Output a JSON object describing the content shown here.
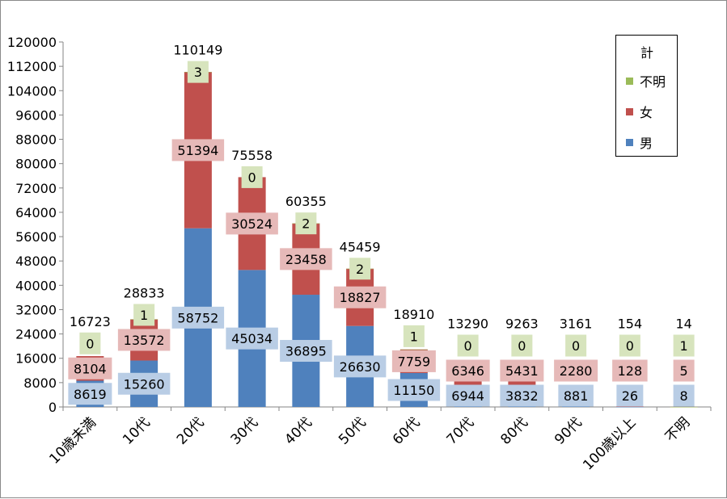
{
  "chart_data": {
    "type": "bar",
    "stacked": true,
    "categories": [
      "10歳未満",
      "10代",
      "20代",
      "30代",
      "40代",
      "50代",
      "60代",
      "70代",
      "80代",
      "90代",
      "100歳以上",
      "不明"
    ],
    "series": [
      {
        "name": "男",
        "color": "#4f81bd",
        "label_bg": "#b9cde5",
        "values": [
          8619,
          15260,
          58752,
          45034,
          36895,
          26630,
          11150,
          6944,
          3832,
          881,
          26,
          8
        ]
      },
      {
        "name": "女",
        "color": "#c0504d",
        "label_bg": "#e6b9b8",
        "values": [
          8104,
          13572,
          51394,
          30524,
          23458,
          18827,
          7759,
          6346,
          5431,
          2280,
          128,
          5
        ]
      },
      {
        "name": "不明",
        "color": "#9bbb59",
        "label_bg": "#d7e4bd",
        "values": [
          0,
          1,
          3,
          0,
          2,
          2,
          1,
          0,
          0,
          0,
          0,
          1
        ]
      }
    ],
    "totals": [
      16723,
      28833,
      110149,
      75558,
      60355,
      45459,
      18910,
      13290,
      9263,
      3161,
      154,
      14
    ],
    "ylim": [
      0,
      120000
    ],
    "yticks": [
      0,
      8000,
      16000,
      24000,
      32000,
      40000,
      48000,
      56000,
      64000,
      72000,
      80000,
      88000,
      96000,
      104000,
      112000,
      120000
    ],
    "legend": {
      "title": "計",
      "position": "top-right"
    },
    "grid": false,
    "title": "",
    "xlabel": "",
    "ylabel": ""
  }
}
